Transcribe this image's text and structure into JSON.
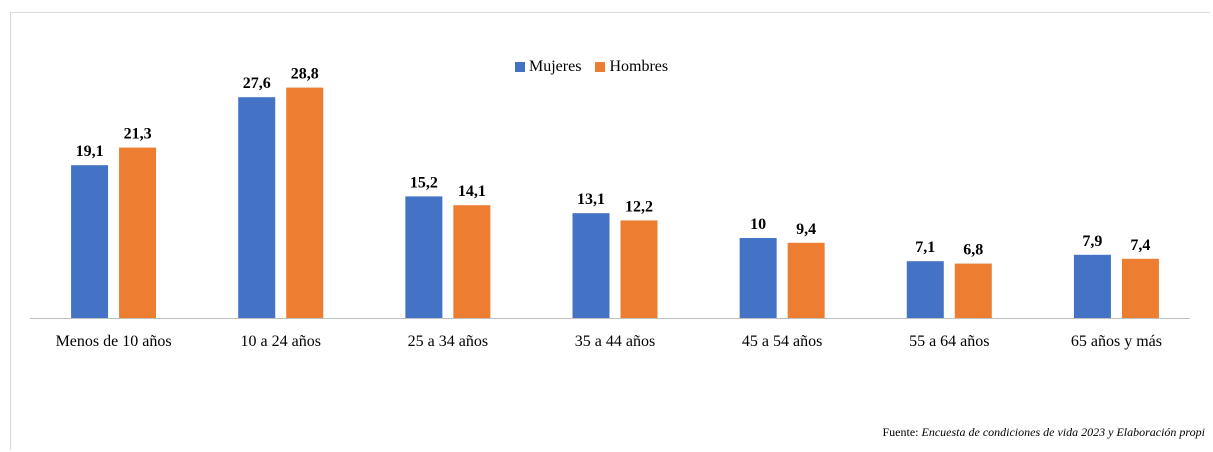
{
  "chart_data": {
    "type": "bar",
    "categories": [
      "Menos de 10 años",
      "10 a 24 años",
      "25 a 34 años",
      "35 a 44 años",
      "45 a 54 años",
      "55 a 64 años",
      "65 años y más"
    ],
    "series": [
      {
        "name": "Mujeres",
        "values": [
          19.1,
          27.6,
          15.2,
          13.1,
          10,
          7.1,
          7.9
        ],
        "labels": [
          "19,1",
          "27,6",
          "15,2",
          "13,1",
          "10",
          "7,1",
          "7,9"
        ],
        "color": "#4472C4"
      },
      {
        "name": "Hombres",
        "values": [
          21.3,
          28.8,
          14.1,
          12.2,
          9.4,
          6.8,
          7.4
        ],
        "labels": [
          "21,3",
          "28,8",
          "14,1",
          "12,2",
          "9,4",
          "6,8",
          "7,4"
        ],
        "color": "#ED7D31"
      }
    ],
    "title": "",
    "xlabel": "",
    "ylabel": "",
    "ylim": [
      0,
      30
    ],
    "legend_position": "top-center",
    "grid": false
  },
  "source": {
    "prefix": "Fuente: ",
    "text": "Encuesta de condiciones de vida 2023  y Elaboración propi"
  }
}
